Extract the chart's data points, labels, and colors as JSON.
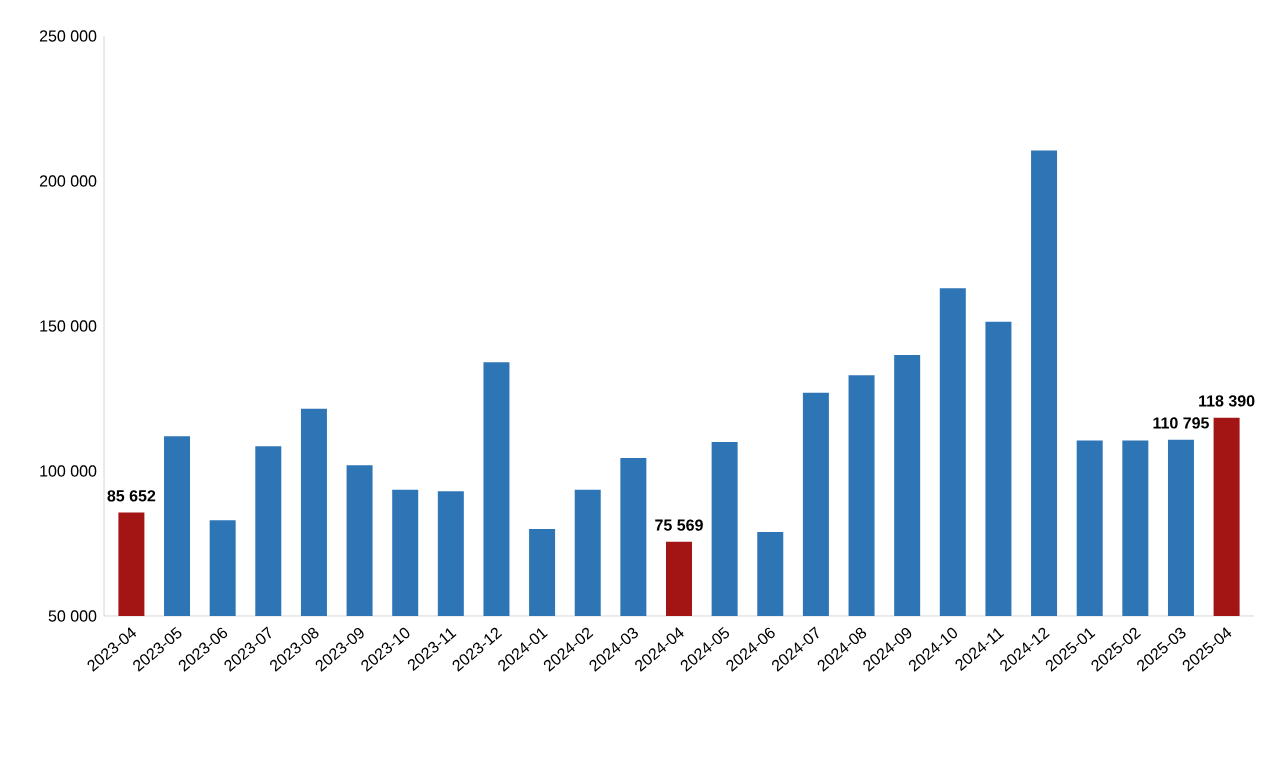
{
  "chart_data": {
    "type": "bar",
    "categories": [
      "2023-04",
      "2023-05",
      "2023-06",
      "2023-07",
      "2023-08",
      "2023-09",
      "2023-10",
      "2023-11",
      "2023-12",
      "2024-01",
      "2024-02",
      "2024-03",
      "2024-04",
      "2024-05",
      "2024-06",
      "2024-07",
      "2024-08",
      "2024-09",
      "2024-10",
      "2024-11",
      "2024-12",
      "2025-01",
      "2025-02",
      "2025-03",
      "2025-04"
    ],
    "values": [
      85652,
      112000,
      83000,
      108500,
      121500,
      102000,
      93500,
      93000,
      137500,
      80000,
      93500,
      104500,
      75569,
      110000,
      79000,
      127000,
      133000,
      140000,
      163000,
      151500,
      210500,
      110500,
      110500,
      110795,
      118390
    ],
    "colors": [
      "#a31515",
      "#2e75b6",
      "#2e75b6",
      "#2e75b6",
      "#2e75b6",
      "#2e75b6",
      "#2e75b6",
      "#2e75b6",
      "#2e75b6",
      "#2e75b6",
      "#2e75b6",
      "#2e75b6",
      "#a31515",
      "#2e75b6",
      "#2e75b6",
      "#2e75b6",
      "#2e75b6",
      "#2e75b6",
      "#2e75b6",
      "#2e75b6",
      "#2e75b6",
      "#2e75b6",
      "#2e75b6",
      "#2e75b6",
      "#a31515"
    ],
    "value_labels": [
      "85 652",
      null,
      null,
      null,
      null,
      null,
      null,
      null,
      null,
      null,
      null,
      null,
      "75 569",
      null,
      null,
      null,
      null,
      null,
      null,
      null,
      null,
      null,
      null,
      "110 795",
      "118 390"
    ],
    "ylim": [
      50000,
      250000
    ],
    "yticks": [
      {
        "value": 50000,
        "label": "50 000"
      },
      {
        "value": 100000,
        "label": "100 000"
      },
      {
        "value": 150000,
        "label": "150 000"
      },
      {
        "value": 200000,
        "label": "200 000"
      },
      {
        "value": 250000,
        "label": "250 000"
      }
    ],
    "grid": false
  }
}
